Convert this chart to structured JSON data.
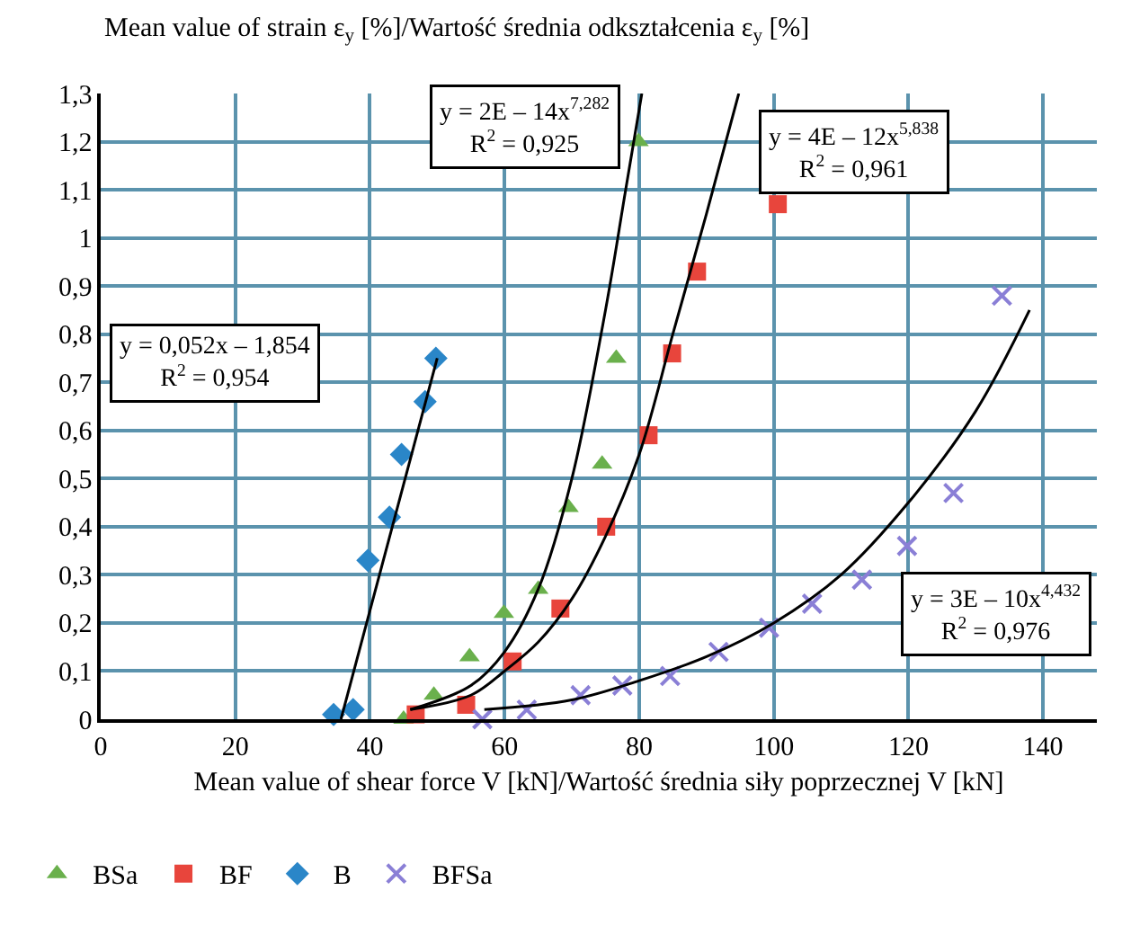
{
  "chart_data": {
    "type": "scatter",
    "xlabel": "Mean value of shear force V [kN]/Wartość średnia siły poprzecznej V [kN]",
    "ylabel": "Mean value of strain ε$_{y}$ [%]/Wartość średnia odkształcenia ε$_{y}$ [%]",
    "xlim": [
      0,
      148
    ],
    "xticks": [
      0,
      20,
      40,
      60,
      80,
      100,
      120,
      140
    ],
    "ylim": [
      0,
      1.3
    ],
    "yticks": [
      0,
      {
        "value": 0.1,
        "label": "0,1"
      },
      {
        "value": 0.2,
        "label": "0,2"
      },
      {
        "value": 0.3,
        "label": "0,3"
      },
      {
        "value": 0.4,
        "label": "0,4"
      },
      {
        "value": 0.5,
        "label": "0,5"
      },
      {
        "value": 0.6,
        "label": "0,6"
      },
      {
        "value": 0.7,
        "label": "0,7"
      },
      {
        "value": 0.8,
        "label": "0,8"
      },
      {
        "value": 0.9,
        "label": "0,9"
      },
      1,
      {
        "value": 1.1,
        "label": "1,1"
      },
      {
        "value": 1.2,
        "label": "1,2"
      },
      {
        "value": 1.3,
        "label": "1,3"
      }
    ],
    "grid": true,
    "legend": "bottom",
    "series": [
      {
        "name": "BSa",
        "color": "#6ab04c",
        "marker": "triangle",
        "x": [
          45,
          49.5,
          54.8,
          59.9,
          65,
          69.5,
          74.5,
          76.6,
          79.9
        ],
        "values": [
          0,
          0.05,
          0.13,
          0.22,
          0.27,
          0.44,
          0.53,
          0.75,
          1.2
        ]
      },
      {
        "name": "BF",
        "color": "#e8453c",
        "marker": "square",
        "x": [
          46.8,
          54.3,
          61.2,
          68.3,
          75.1,
          81.4,
          84.9,
          88.6,
          100.6
        ],
        "values": [
          0.01,
          0.03,
          0.12,
          0.23,
          0.4,
          0.59,
          0.76,
          0.93,
          1.07
        ]
      },
      {
        "name": "B",
        "color": "#2a86c8",
        "marker": "diamond",
        "x": [
          34.6,
          37.5,
          39.7,
          42.9,
          44.7,
          48.2,
          49.8
        ],
        "values": [
          0.01,
          0.02,
          0.33,
          0.42,
          0.55,
          0.66,
          0.75
        ]
      },
      {
        "name": "BFSa",
        "color": "#8a7fd6",
        "marker": "cross",
        "x": [
          56.7,
          63.3,
          71.3,
          77.5,
          84.6,
          91.8,
          99.3,
          105.7,
          113.1,
          119.8,
          126.7,
          133.9
        ],
        "values": [
          0,
          0.02,
          0.05,
          0.07,
          0.09,
          0.14,
          0.19,
          0.24,
          0.29,
          0.36,
          0.47,
          0.88
        ]
      },
      {
        "type": "line",
        "color": "#000000",
        "x": [
          35.7,
          50
        ],
        "values": [
          0,
          0.75
        ]
      },
      {
        "type": "line",
        "color": "#000000",
        "x": [
          46,
          55,
          60,
          65,
          70,
          75,
          78,
          80.4
        ],
        "values": [
          0.02,
          0.07,
          0.14,
          0.27,
          0.5,
          0.85,
          1.1,
          1.3
        ]
      },
      {
        "type": "line",
        "color": "#000000",
        "x": [
          46,
          55,
          60,
          65,
          70,
          75,
          80,
          85,
          90,
          94.8
        ],
        "values": [
          0.02,
          0.05,
          0.1,
          0.16,
          0.25,
          0.38,
          0.55,
          0.8,
          1.05,
          1.3
        ]
      },
      {
        "type": "line",
        "color": "#000000",
        "x": [
          57,
          70,
          80,
          90,
          100,
          110,
          120,
          130,
          138
        ],
        "values": [
          0.02,
          0.04,
          0.08,
          0.13,
          0.2,
          0.3,
          0.45,
          0.64,
          0.85
        ]
      }
    ],
    "annotations": [
      "y = 0,052x – 1,854\nR$^{2}$ = 0,954",
      "y = 2E – 14x$^{7,282}$\nR$^{2}$ = 0,925",
      "y = 4E – 12x$^{5,838}$\nR$^{2}$ = 0,961",
      "y = 3E – 10x$^{4,432}$\nR$^{2}$ = 0,976"
    ]
  }
}
